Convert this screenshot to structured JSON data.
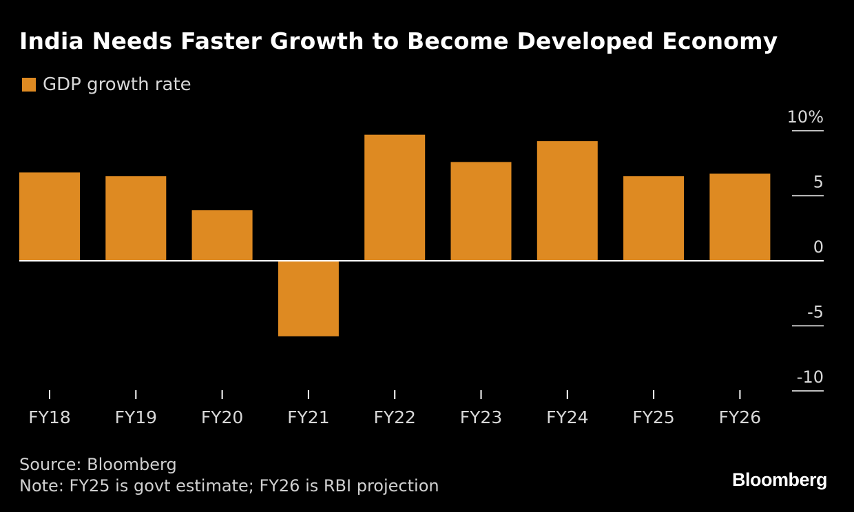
{
  "header": {
    "title": "India Needs Faster Growth to Become Developed Economy"
  },
  "legend": {
    "label": "GDP growth rate"
  },
  "colors": {
    "background": "#000000",
    "bar": "#DE8A22",
    "axis": "#FFFFFF",
    "text": "#D8D8D8"
  },
  "chart_data": {
    "type": "bar",
    "title": "India Needs Faster Growth to Become Developed Economy",
    "categories": [
      "FY18",
      "FY19",
      "FY20",
      "FY21",
      "FY22",
      "FY23",
      "FY24",
      "FY25",
      "FY26"
    ],
    "series": [
      {
        "name": "GDP growth rate",
        "values": [
          6.8,
          6.5,
          3.9,
          -5.8,
          9.7,
          7.6,
          9.2,
          6.5,
          6.7
        ]
      }
    ],
    "ylim": [
      -10,
      10
    ],
    "yticks": [
      10,
      5,
      0,
      -5,
      -10
    ],
    "ytick_labels": [
      "10%",
      "5",
      "0",
      "-5",
      "-10"
    ],
    "y_axis_side": "right",
    "grid": false,
    "legend_position": "top-left"
  },
  "footer": {
    "source": "Source: Bloomberg",
    "note": "Note: FY25 is govt estimate; FY26 is RBI projection",
    "brand": "Bloomberg"
  }
}
